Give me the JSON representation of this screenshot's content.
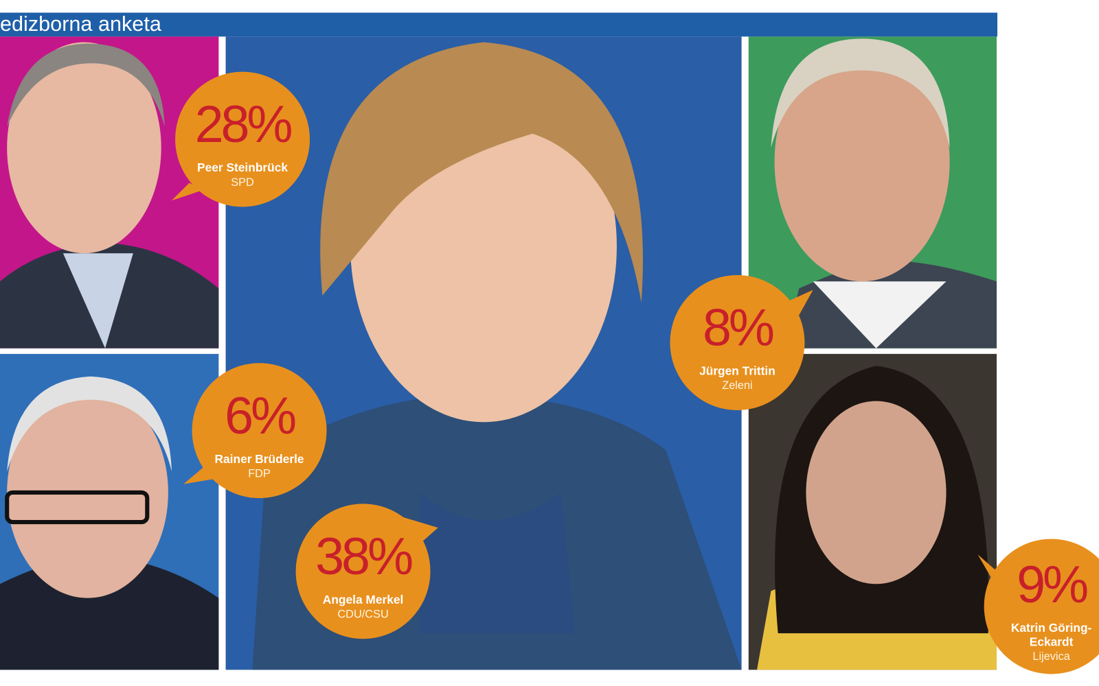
{
  "header": {
    "title": "edizborna anketa"
  },
  "candidates": [
    {
      "percent": "28%",
      "name": [
        "Peer Steinbrück"
      ],
      "party": "SPD"
    },
    {
      "percent": "6%",
      "name": [
        "Rainer Brüderle"
      ],
      "party": "FDP"
    },
    {
      "percent": "38%",
      "name": [
        "Angela Merkel"
      ],
      "party": "CDU/CSU"
    },
    {
      "percent": "8%",
      "name": [
        "Jürgen Trittin"
      ],
      "party": "Zeleni"
    },
    {
      "percent": "9%",
      "name": [
        "Katrin Göring-",
        "Eckardt"
      ],
      "party": "Lijevica"
    }
  ]
}
